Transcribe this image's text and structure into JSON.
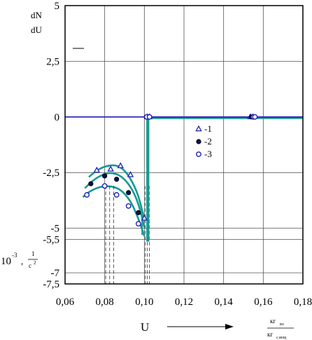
{
  "chart_data": {
    "type": "scatter",
    "xlim": [
      0.06,
      0.18
    ],
    "ylim": [
      -7.5,
      5
    ],
    "x_ticks": [
      "0,06",
      "0,08",
      "0,10",
      "0,12",
      "0,14",
      "0,16",
      "0,18"
    ],
    "y_ticks": [
      "5",
      "2,5",
      "0",
      "-2,5",
      "-5",
      "-5,5",
      "-7",
      "-7,5"
    ],
    "y_tick_values": [
      5,
      2.5,
      0,
      -2.5,
      -5,
      -5.5,
      -7,
      -7.5
    ],
    "y_label_top": "dN",
    "y_label_bottom": "dU",
    "y_unit_prefix": "10",
    "y_unit_exp": "-3",
    "y_unit_num": "1",
    "y_unit_den": "c",
    "y_unit_den_exp": "2",
    "x_label": "U",
    "x_unit_num": "кг",
    "x_unit_num_sub": "вл",
    "x_unit_den": "кг",
    "x_unit_den_sub": "с.вещ",
    "grid": true,
    "legend_position": "right",
    "series": [
      {
        "name": "-1",
        "marker": "triangle",
        "points": [
          [
            0.076,
            -2.4
          ],
          [
            0.083,
            -2.35
          ],
          [
            0.088,
            -2.2
          ],
          [
            0.093,
            -2.6
          ],
          [
            0.1,
            -4.55
          ],
          [
            0.1015,
            0
          ],
          [
            0.1025,
            0
          ],
          [
            0.1535,
            0
          ],
          [
            0.1548,
            0
          ]
        ]
      },
      {
        "name": "-2",
        "marker": "filled-circle",
        "points": [
          [
            0.073,
            -3.0
          ],
          [
            0.08,
            -2.65
          ],
          [
            0.086,
            -2.8
          ],
          [
            0.092,
            -3.4
          ],
          [
            0.097,
            -4.3
          ],
          [
            0.101,
            0
          ],
          [
            0.1022,
            0
          ],
          [
            0.154,
            0
          ],
          [
            0.1553,
            0
          ]
        ]
      },
      {
        "name": "-3",
        "marker": "open-circle",
        "points": [
          [
            0.071,
            -3.5
          ],
          [
            0.08,
            -3.1
          ],
          [
            0.086,
            -3.5
          ],
          [
            0.092,
            -4.0
          ],
          [
            0.097,
            -4.8
          ],
          [
            0.1012,
            0
          ],
          [
            0.1026,
            0
          ],
          [
            0.155,
            0
          ],
          [
            0.1558,
            0
          ]
        ]
      }
    ],
    "fit_curves": [
      {
        "x": [
          0.069,
          0.073,
          0.078,
          0.083,
          0.088,
          0.093,
          0.097,
          0.1
        ],
        "y": [
          -3.6,
          -3.3,
          -3.13,
          -3.1,
          -3.25,
          -3.75,
          -4.55,
          -5.35
        ]
      },
      {
        "x": [
          0.07,
          0.074,
          0.079,
          0.083,
          0.088,
          0.093,
          0.097,
          0.1
        ],
        "y": [
          -3.2,
          -2.85,
          -2.58,
          -2.5,
          -2.62,
          -3.1,
          -3.85,
          -4.95
        ]
      },
      {
        "x": [
          0.072,
          0.076,
          0.08,
          0.085,
          0.089,
          0.093,
          0.097,
          0.1
        ],
        "y": [
          -2.7,
          -2.4,
          -2.22,
          -2.15,
          -2.3,
          -2.75,
          -3.5,
          -4.6
        ]
      }
    ],
    "vertical_band": {
      "x": [
        0.101,
        0.1025
      ],
      "y_top": 0,
      "y_bottom": -5.6
    },
    "zero_line": {
      "x": [
        0.101,
        0.18
      ],
      "y": 0
    },
    "dashed_drops": [
      0.0805,
      0.0825,
      0.0845,
      0.1005,
      0.1015,
      0.1025
    ]
  }
}
